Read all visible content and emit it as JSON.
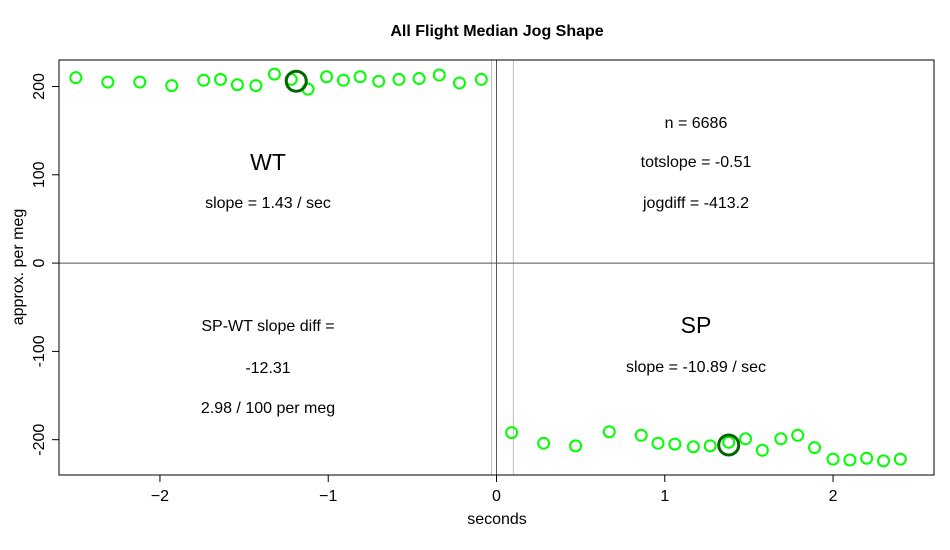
{
  "chart_data": {
    "type": "scatter",
    "title": "All Flight Median Jog Shape",
    "xlabel": "seconds",
    "ylabel": "approx. per meg",
    "xlim": [
      -2.6,
      2.6
    ],
    "ylim": [
      -240,
      230
    ],
    "x_ticks": [
      -2,
      -1,
      0,
      1,
      2
    ],
    "x_tick_labels": [
      "−2",
      "−1",
      "0",
      "1",
      "2"
    ],
    "y_ticks": [
      200,
      100,
      0,
      -100,
      -200
    ],
    "y_tick_labels": [
      "200",
      "100",
      "0",
      "-100",
      "-200"
    ],
    "point_color": "#00ff00",
    "highlight_color": "#006400",
    "reference_lines": {
      "horizontal": [
        0
      ],
      "vertical_dark": [
        0
      ],
      "vertical_light": [
        -0.03,
        0.1
      ]
    },
    "series": [
      {
        "points": [
          {
            "x": -2.5,
            "y": 210
          },
          {
            "x": -2.31,
            "y": 205
          },
          {
            "x": -2.12,
            "y": 205
          },
          {
            "x": -1.93,
            "y": 201
          },
          {
            "x": -1.74,
            "y": 207
          },
          {
            "x": -1.64,
            "y": 208
          },
          {
            "x": -1.54,
            "y": 202
          },
          {
            "x": -1.43,
            "y": 201
          },
          {
            "x": -1.32,
            "y": 214
          },
          {
            "x": -1.22,
            "y": 208
          },
          {
            "x": -1.12,
            "y": 197
          },
          {
            "x": -1.01,
            "y": 211
          },
          {
            "x": -0.91,
            "y": 207
          },
          {
            "x": -0.81,
            "y": 211
          },
          {
            "x": -0.7,
            "y": 206
          },
          {
            "x": -0.58,
            "y": 208
          },
          {
            "x": -0.46,
            "y": 209
          },
          {
            "x": -0.34,
            "y": 213
          },
          {
            "x": -0.22,
            "y": 204
          },
          {
            "x": -0.09,
            "y": 208
          }
        ]
      },
      {
        "points": [
          {
            "x": 0.09,
            "y": -192
          },
          {
            "x": 0.28,
            "y": -204
          },
          {
            "x": 0.47,
            "y": -207
          },
          {
            "x": 0.67,
            "y": -191
          },
          {
            "x": 0.86,
            "y": -195
          },
          {
            "x": 0.96,
            "y": -204
          },
          {
            "x": 1.06,
            "y": -205
          },
          {
            "x": 1.17,
            "y": -208
          },
          {
            "x": 1.27,
            "y": -207
          },
          {
            "x": 1.38,
            "y": -203
          },
          {
            "x": 1.48,
            "y": -199
          },
          {
            "x": 1.58,
            "y": -212
          },
          {
            "x": 1.69,
            "y": -199
          },
          {
            "x": 1.79,
            "y": -195
          },
          {
            "x": 1.89,
            "y": -209
          },
          {
            "x": 2.0,
            "y": -222
          },
          {
            "x": 2.1,
            "y": -223
          },
          {
            "x": 2.2,
            "y": -221
          },
          {
            "x": 2.3,
            "y": -224
          },
          {
            "x": 2.4,
            "y": -222
          }
        ]
      }
    ],
    "highlight_points": [
      {
        "x": -1.19,
        "y": 206
      },
      {
        "x": 1.38,
        "y": -206
      }
    ],
    "annotations": {
      "top_left_title": "WT",
      "top_left_slope": "slope = 1.43 / sec",
      "top_right_n": "n = 6686",
      "top_right_totslope": "totslope = -0.51",
      "top_right_jogdiff": "jogdiff = -413.2",
      "bottom_left_label": "SP-WT slope diff =",
      "bottom_left_value": "-12.31",
      "bottom_left_rate": "2.98 / 100 per meg",
      "bottom_right_title": "SP",
      "bottom_right_slope": "slope = -10.89 / sec"
    }
  }
}
